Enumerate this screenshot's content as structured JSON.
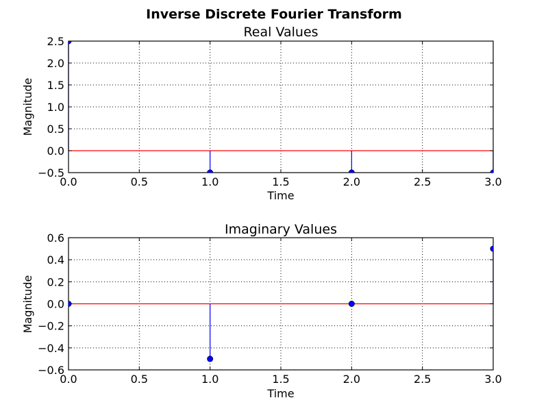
{
  "figure": {
    "title": "Inverse Discrete Fourier Transform"
  },
  "colors": {
    "stem": "#0000ff",
    "marker": "#0000ff",
    "baseline": "#ff0000",
    "grid": "#000000",
    "axes": "#000000"
  },
  "chart_data": [
    {
      "type": "stem",
      "title": "Real Values",
      "xlabel": "Time",
      "ylabel": "Magnitude",
      "x": [
        0,
        1,
        2,
        3
      ],
      "y": [
        2.5,
        -0.5,
        -0.5,
        -0.5
      ],
      "baseline": 0.0,
      "xlim": [
        0.0,
        3.0
      ],
      "ylim": [
        -0.5,
        2.5
      ],
      "xticks": [
        0.0,
        0.5,
        1.0,
        1.5,
        2.0,
        2.5,
        3.0
      ],
      "xticklabels": [
        "0.0",
        "0.5",
        "1.0",
        "1.5",
        "2.0",
        "2.5",
        "3.0"
      ],
      "yticks": [
        -0.5,
        0.0,
        0.5,
        1.0,
        1.5,
        2.0,
        2.5
      ],
      "yticklabels": [
        "−0.5",
        "0.0",
        "0.5",
        "1.0",
        "1.5",
        "2.0",
        "2.5"
      ],
      "grid": true
    },
    {
      "type": "stem",
      "title": "Imaginary Values",
      "xlabel": "Time",
      "ylabel": "Magnitude",
      "x": [
        0,
        1,
        2,
        3
      ],
      "y": [
        0.0,
        -0.5,
        0.0,
        0.5
      ],
      "baseline": 0.0,
      "xlim": [
        0.0,
        3.0
      ],
      "ylim": [
        -0.6,
        0.6
      ],
      "xticks": [
        0.0,
        0.5,
        1.0,
        1.5,
        2.0,
        2.5,
        3.0
      ],
      "xticklabels": [
        "0.0",
        "0.5",
        "1.0",
        "1.5",
        "2.0",
        "2.5",
        "3.0"
      ],
      "yticks": [
        -0.6,
        -0.4,
        -0.2,
        0.0,
        0.2,
        0.4,
        0.6
      ],
      "yticklabels": [
        "−0.6",
        "−0.4",
        "−0.2",
        "0.0",
        "0.2",
        "0.4",
        "0.6"
      ],
      "grid": true
    }
  ]
}
